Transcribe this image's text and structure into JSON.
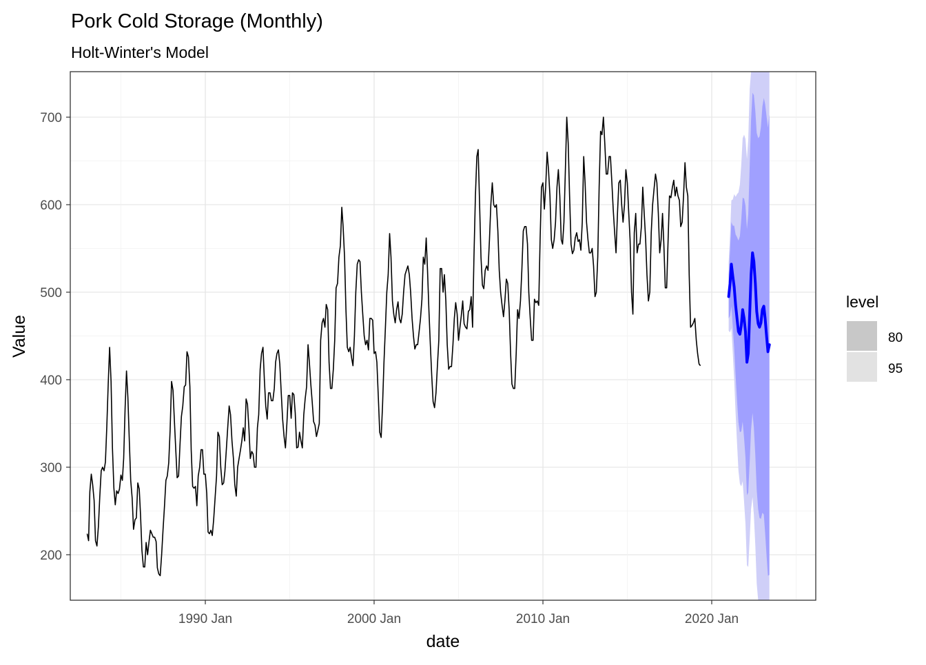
{
  "chart_data": {
    "type": "line",
    "title": "Pork Cold Storage (Monthly)",
    "subtitle": "Holt-Winter's Model",
    "xlabel": "date",
    "ylabel": "Value",
    "x_range": [
      "1982-01-01",
      "2026-03-01"
    ],
    "ylim": [
      148,
      752
    ],
    "x_ticks": [
      "1990 Jan",
      "2000 Jan",
      "2010 Jan",
      "2020 Jan"
    ],
    "x_tick_dates": [
      "1990-01-01",
      "2000-01-01",
      "2010-01-01",
      "2020-01-01"
    ],
    "y_ticks": [
      200,
      300,
      400,
      500,
      600,
      700
    ],
    "grid": true,
    "legend": {
      "title": "level",
      "position": "right",
      "entries": [
        {
          "label": "80",
          "color": "#c8c8c8"
        },
        {
          "label": "95",
          "color": "#e2e2e2"
        }
      ]
    },
    "colors": {
      "history": "#000000",
      "forecast": "#0000ff",
      "band_80": "#a0a0ff",
      "band_95": "#cfcff8"
    },
    "history": {
      "start": "1983-01",
      "values": [
        224,
        216,
        272,
        292,
        280,
        262,
        216,
        210,
        232,
        266,
        296,
        300,
        296,
        306,
        346,
        396,
        437,
        398,
        322,
        276,
        257,
        273,
        270,
        275,
        291,
        285,
        310,
        368,
        410,
        380,
        330,
        285,
        265,
        229,
        240,
        242,
        282,
        275,
        245,
        205,
        186,
        186,
        214,
        200,
        215,
        228,
        224,
        220,
        220,
        215,
        185,
        178,
        176,
        200,
        228,
        255,
        285,
        290,
        305,
        342,
        398,
        388,
        355,
        320,
        288,
        290,
        325,
        358,
        370,
        392,
        394,
        432,
        426,
        392,
        320,
        278,
        276,
        278,
        256,
        290,
        300,
        320,
        320,
        292,
        292,
        270,
        226,
        224,
        228,
        222,
        240,
        265,
        290,
        340,
        335,
        300,
        280,
        282,
        295,
        320,
        345,
        370,
        360,
        330,
        310,
        280,
        267,
        300,
        310,
        320,
        330,
        345,
        330,
        378,
        372,
        344,
        310,
        318,
        315,
        300,
        300,
        345,
        360,
        412,
        430,
        437,
        400,
        370,
        355,
        385,
        385,
        376,
        376,
        390,
        420,
        430,
        434,
        418,
        385,
        355,
        335,
        322,
        350,
        382,
        382,
        356,
        385,
        383,
        362,
        322,
        323,
        340,
        330,
        322,
        360,
        378,
        392,
        440,
        420,
        395,
        375,
        352,
        348,
        335,
        342,
        350,
        445,
        465,
        470,
        460,
        486,
        480,
        420,
        390,
        390,
        412,
        445,
        505,
        510,
        540,
        553,
        597,
        575,
        540,
        480,
        437,
        432,
        437,
        425,
        416,
        450,
        500,
        532,
        537,
        535,
        500,
        475,
        450,
        440,
        445,
        434,
        470,
        470,
        468,
        430,
        432,
        420,
        380,
        340,
        334,
        370,
        420,
        460,
        500,
        520,
        567,
        540,
        490,
        475,
        465,
        480,
        489,
        470,
        465,
        475,
        500,
        520,
        525,
        530,
        520,
        500,
        470,
        450,
        435,
        440,
        440,
        455,
        470,
        492,
        540,
        532,
        562,
        525,
        480,
        440,
        405,
        375,
        368,
        385,
        415,
        445,
        527,
        527,
        500,
        520,
        490,
        440,
        412,
        415,
        415,
        440,
        470,
        488,
        475,
        445,
        460,
        473,
        490,
        464,
        460,
        458,
        478,
        480,
        495,
        460,
        540,
        610,
        655,
        663,
        600,
        540,
        508,
        504,
        525,
        530,
        525,
        560,
        600,
        625,
        600,
        597,
        600,
        570,
        525,
        500,
        485,
        472,
        490,
        515,
        510,
        480,
        430,
        395,
        390,
        390,
        430,
        480,
        470,
        490,
        525,
        570,
        575,
        575,
        555,
        500,
        470,
        445,
        445,
        492,
        488,
        490,
        485,
        560,
        620,
        625,
        595,
        620,
        660,
        640,
        610,
        560,
        550,
        560,
        580,
        620,
        640,
        610,
        560,
        555,
        580,
        640,
        700,
        670,
        610,
        555,
        544,
        548,
        562,
        568,
        558,
        560,
        548,
        580,
        655,
        625,
        580,
        560,
        545,
        545,
        550,
        530,
        495,
        500,
        540,
        620,
        684,
        680,
        700,
        670,
        635,
        635,
        655,
        655,
        625,
        595,
        568,
        545,
        590,
        625,
        628,
        600,
        580,
        600,
        640,
        625,
        590,
        560,
        500,
        475,
        568,
        590,
        545,
        555,
        555,
        575,
        620,
        590,
        560,
        520,
        490,
        500,
        568,
        600,
        618,
        635,
        625,
        590,
        545,
        560,
        590,
        555,
        505,
        505,
        560,
        610,
        608,
        620,
        628,
        610,
        620,
        610,
        605,
        575,
        580,
        610,
        648,
        620,
        610,
        520,
        460,
        462,
        465,
        470,
        445,
        430,
        418,
        416
      ]
    },
    "forecast": {
      "start": "2021-01",
      "values": [
        495,
        510,
        532,
        518,
        506,
        485,
        470,
        455,
        452,
        462,
        480,
        470,
        455,
        420,
        430,
        475,
        520,
        545,
        535,
        510,
        478,
        464,
        460,
        465,
        480,
        484,
        470,
        450,
        432,
        440
      ],
      "lo80": [
        470,
        473,
        484,
        460,
        436,
        404,
        377,
        351,
        340,
        341,
        352,
        333,
        311,
        268,
        271,
        306,
        343,
        362,
        345,
        313,
        274,
        252,
        242,
        241,
        248,
        246,
        225,
        199,
        176,
        177
      ],
      "hi80": [
        520,
        547,
        580,
        576,
        576,
        566,
        563,
        559,
        564,
        583,
        608,
        607,
        599,
        572,
        589,
        644,
        697,
        728,
        725,
        707,
        682,
        676,
        678,
        689,
        712,
        722,
        715,
        701,
        688,
        703
      ],
      "lo95": [
        456,
        454,
        459,
        430,
        400,
        361,
        328,
        296,
        281,
        278,
        284,
        260,
        235,
        188,
        186,
        218,
        252,
        266,
        245,
        210,
        167,
        143,
        129,
        126,
        129,
        124,
        100,
        73,
        48,
        48
      ],
      "hi95": [
        534,
        566,
        605,
        606,
        612,
        609,
        612,
        614,
        623,
        646,
        676,
        680,
        675,
        652,
        674,
        732,
        788,
        824,
        825,
        810,
        789,
        785,
        791,
        804,
        831,
        844,
        840,
        827,
        816,
        832
      ]
    }
  }
}
